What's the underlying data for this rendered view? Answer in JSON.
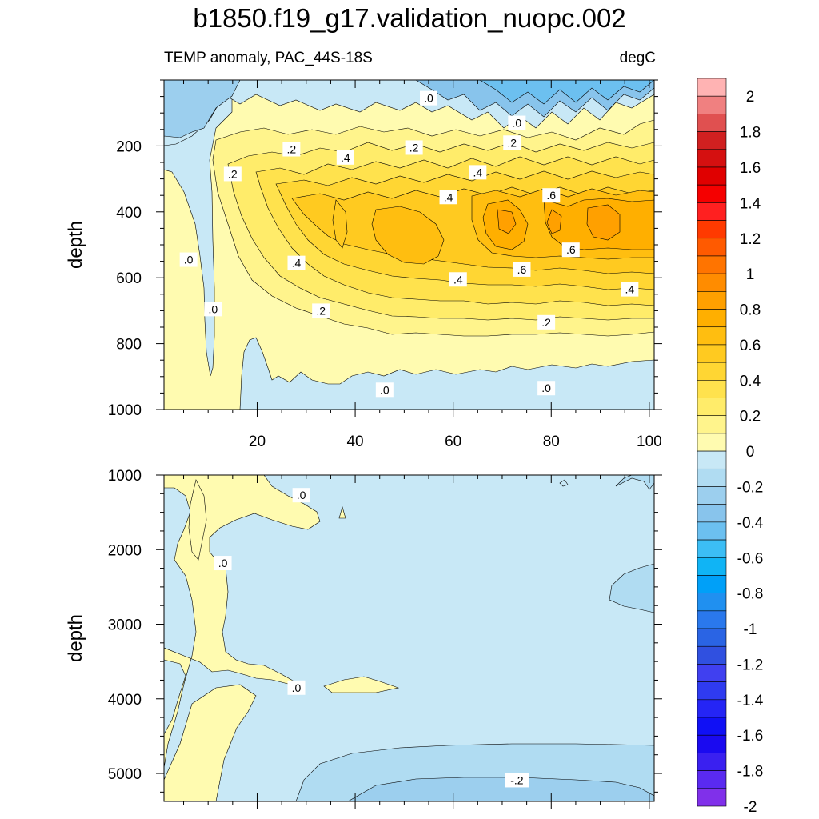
{
  "title": "b1850.f19_g17.validation_nuopc.002",
  "subtitle_left": "TEMP anomaly, PAC_44S-18S",
  "subtitle_right": "degC",
  "chart_data": [
    {
      "type": "heatmap",
      "panel": "upper",
      "x_ticks": [
        "20",
        "40",
        "60",
        "80",
        "100"
      ],
      "x_tick_values": [
        20,
        40,
        60,
        80,
        100
      ],
      "xlim": [
        1,
        101
      ],
      "ylabel": "depth",
      "y_ticks": [
        "200",
        "400",
        "600",
        "800",
        "1000"
      ],
      "y_tick_values": [
        200,
        400,
        600,
        800,
        1000
      ],
      "ylim": [
        0,
        1000
      ],
      "y_reversed": true,
      "contour_labels": [
        {
          "text": ".0",
          "x": 55,
          "y": 55
        },
        {
          "text": ".0",
          "x": 73,
          "y": 130
        },
        {
          "text": ".2",
          "x": 27,
          "y": 210
        },
        {
          "text": ".2",
          "x": 52,
          "y": 205
        },
        {
          "text": ".2",
          "x": 72,
          "y": 190
        },
        {
          "text": ".4",
          "x": 38,
          "y": 235
        },
        {
          "text": ".4",
          "x": 65,
          "y": 280
        },
        {
          "text": ".2",
          "x": 15,
          "y": 285
        },
        {
          "text": ".4",
          "x": 59,
          "y": 355
        },
        {
          "text": ".6",
          "x": 80,
          "y": 350
        },
        {
          "text": ".6",
          "x": 84,
          "y": 515
        },
        {
          "text": ".0",
          "x": 6,
          "y": 545
        },
        {
          "text": ".4",
          "x": 28,
          "y": 555
        },
        {
          "text": ".6",
          "x": 74,
          "y": 575
        },
        {
          "text": ".4",
          "x": 61,
          "y": 605
        },
        {
          "text": ".4",
          "x": 96,
          "y": 635
        },
        {
          "text": ".0",
          "x": 11,
          "y": 695
        },
        {
          "text": ".2",
          "x": 33,
          "y": 700
        },
        {
          "text": ".2",
          "x": 79,
          "y": 735
        },
        {
          "text": ".0",
          "x": 46,
          "y": 940
        },
        {
          "text": ".0",
          "x": 79,
          "y": 935
        }
      ]
    },
    {
      "type": "heatmap",
      "panel": "lower",
      "xlim": [
        1,
        101
      ],
      "ylabel": "depth",
      "y_ticks": [
        "1000",
        "2000",
        "3000",
        "4000",
        "5000"
      ],
      "y_tick_values": [
        1000,
        2000,
        3000,
        4000,
        5000
      ],
      "ylim": [
        1000,
        5375
      ],
      "y_reversed": true,
      "contour_labels": [
        {
          "text": ".0",
          "x": 29,
          "y": 1270
        },
        {
          "text": ".0",
          "x": 13,
          "y": 2180
        },
        {
          "text": ".0",
          "x": 28,
          "y": 3850
        },
        {
          "text": "-.2",
          "x": 73,
          "y": 5090
        }
      ]
    },
    {
      "type": "colorbar",
      "levels": [
        "2",
        "1.8",
        "1.6",
        "1.4",
        "1.2",
        "1",
        "0.8",
        "0.6",
        "0.4",
        "0.2",
        "0",
        "-0.2",
        "-0.4",
        "-0.6",
        "-0.8",
        "-1",
        "-1.2",
        "-1.4",
        "-1.6",
        "-1.8",
        "-2"
      ],
      "colors": [
        "#FFB3B3",
        "#F08080",
        "#E05050",
        "#D02020",
        "#D51010",
        "#E00000",
        "#F50000",
        "#FF2020",
        "#FF3A00",
        "#FF5A00",
        "#FF7400",
        "#FF8C00",
        "#FFA000",
        "#FFAF00",
        "#FFBE10",
        "#FFCA20",
        "#FFD633",
        "#FFE24D",
        "#FFEC6A",
        "#FFF48C",
        "#FFFBB0",
        "#C8E8F6",
        "#B0DCF2",
        "#9CCFEE",
        "#88C4EC",
        "#6CC0F0",
        "#3CBEF5",
        "#10B4F5",
        "#00A0F8",
        "#2090F0",
        "#2A78EC",
        "#2A64E4",
        "#3050E0",
        "#4040F0",
        "#2F3BF0",
        "#2525F5",
        "#1010F5",
        "#1A0AF0",
        "#3A20F0",
        "#5A2AF0",
        "#8030EA"
      ]
    }
  ]
}
